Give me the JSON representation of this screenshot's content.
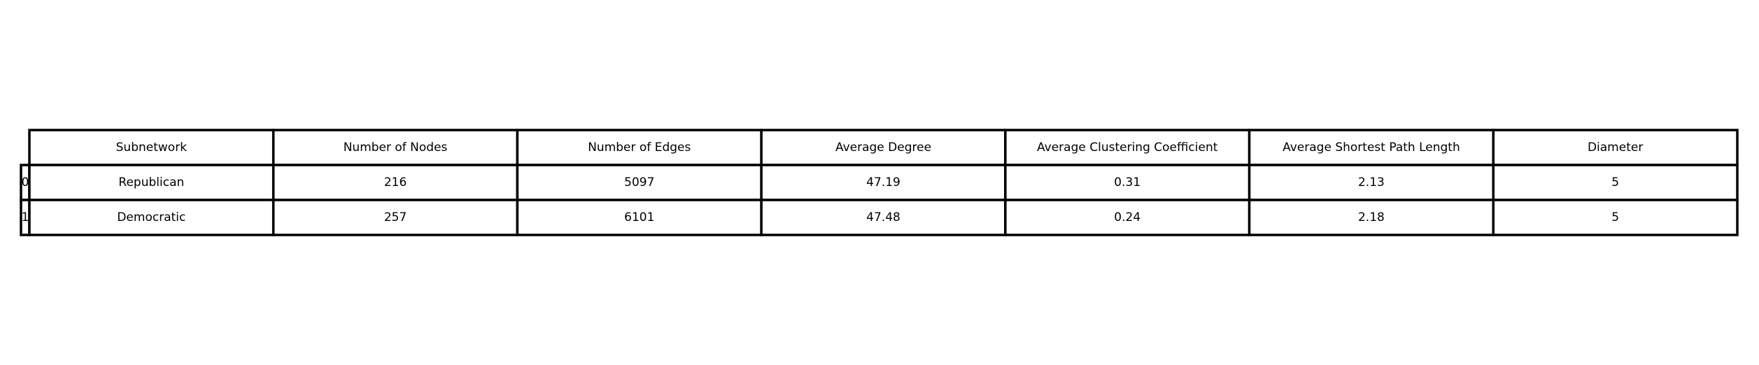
{
  "chart_data": {
    "type": "table",
    "columns": [
      "Subnetwork",
      "Number of Nodes",
      "Number of Edges",
      "Average Degree",
      "Average Clustering Coefficient",
      "Average Shortest Path Length",
      "Diameter"
    ],
    "row_labels": [
      "0",
      "1"
    ],
    "rows": [
      [
        "Republican",
        "216",
        "5097",
        "47.19",
        "0.31",
        "2.13",
        "5"
      ],
      [
        "Democratic",
        "257",
        "6101",
        "47.48",
        "0.24",
        "2.18",
        "5"
      ]
    ]
  }
}
